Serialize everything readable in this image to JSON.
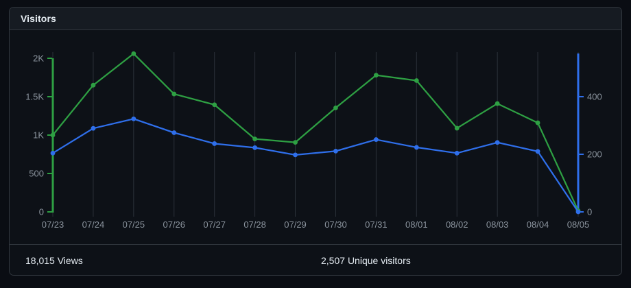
{
  "card": {
    "title": "Visitors"
  },
  "stats": {
    "views_value": "18,015",
    "views_label": "Views",
    "unique_value": "2,507",
    "unique_label": "Unique visitors"
  },
  "chart_data": {
    "type": "line",
    "title": "Visitors",
    "x_labels": [
      "07/23",
      "07/24",
      "07/25",
      "07/26",
      "07/27",
      "07/28",
      "07/29",
      "07/30",
      "07/31",
      "08/01",
      "08/02",
      "08/03",
      "08/04",
      "08/05"
    ],
    "series": [
      {
        "name": "Views",
        "axis": "left",
        "color": "#2ea043",
        "values": [
          1000,
          1650,
          2060,
          1535,
          1395,
          950,
          905,
          1355,
          1780,
          1710,
          1090,
          1410,
          1160,
          15
        ]
      },
      {
        "name": "Unique visitors",
        "axis": "right",
        "color": "#2f6feb",
        "values": [
          204,
          290,
          323,
          275,
          237,
          223,
          198,
          211,
          251,
          224,
          204,
          241,
          210,
          0
        ]
      }
    ],
    "left_axis": {
      "color": "#2ea043",
      "max": 2000,
      "ticks": [
        0,
        500,
        1000,
        1500,
        2000
      ],
      "tick_labels": [
        "0",
        "500",
        "1K",
        "1.5K",
        "2K"
      ]
    },
    "right_axis": {
      "color": "#2f6feb",
      "max": 550,
      "ticks": [
        0,
        200,
        400
      ],
      "tick_labels": [
        "0",
        "200",
        "400"
      ]
    },
    "grid": {
      "vertical": true,
      "color": "#2b313a"
    },
    "label_color": "#8b949e",
    "legend": "none",
    "totals": {
      "views": 18015,
      "unique_visitors": 2507
    }
  }
}
